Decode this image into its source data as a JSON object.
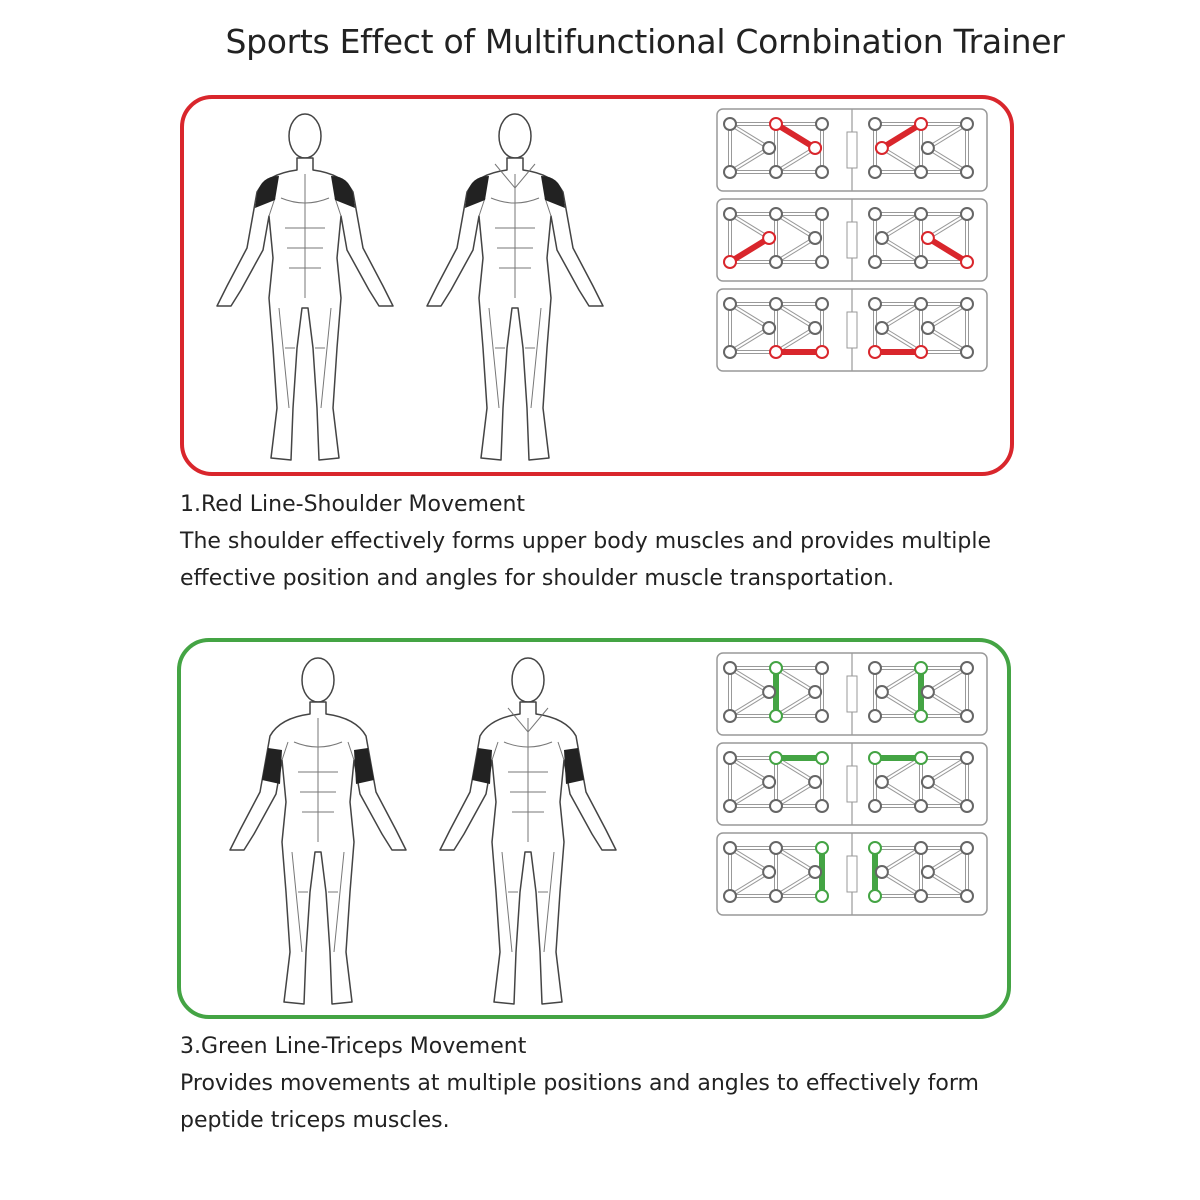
{
  "title": "Sports Effect of Multifunctional Cornbination Trainer",
  "sections": [
    {
      "color": "#d9262c",
      "highlight_muscle": "shoulders",
      "heading": "1.Red Line-Shoulder Movement",
      "lines": [
        "The shoulder effectively forms upper body muscles and provides multiple",
        "effective position and angles for shoulder muscle transportation."
      ],
      "boards": [
        {
          "left": [
            "top-mid",
            "mid-right"
          ],
          "right": [
            "mid-left",
            "top-mid"
          ]
        },
        {
          "left": [
            "bottom-left",
            "mid-left"
          ],
          "right": [
            "mid-right",
            "bottom-right"
          ]
        },
        {
          "left": [
            "bottom-mid",
            "bottom-right"
          ],
          "right": [
            "bottom-left",
            "bottom-mid"
          ]
        }
      ]
    },
    {
      "color": "#44a444",
      "highlight_muscle": "triceps",
      "heading": "3.Green Line-Triceps Movement",
      "lines": [
        "Provides movements at multiple positions and angles to effectively form",
        "peptide triceps muscles."
      ],
      "boards": [
        {
          "left": [
            "top-mid",
            "bottom-mid"
          ],
          "right": [
            "top-mid",
            "bottom-mid"
          ]
        },
        {
          "left": [
            "top-mid",
            "top-right"
          ],
          "right": [
            "top-left",
            "top-mid"
          ]
        },
        {
          "left": [
            "top-right",
            "bottom-right"
          ],
          "right": [
            "top-left",
            "bottom-left"
          ]
        }
      ]
    }
  ]
}
